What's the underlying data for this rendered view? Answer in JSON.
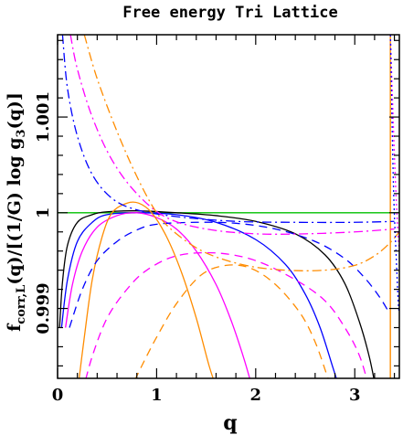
{
  "chart_data": {
    "type": "line",
    "title": "Free energy Tri Lattice",
    "xlabel": "q",
    "ylabel_main": "f",
    "ylabel_sub": "corr,L",
    "ylabel_mid": "(q)/[(1/G) log g",
    "ylabel_sub2": "3",
    "ylabel_tail": "(q)]",
    "xlim": [
      0,
      3.45
    ],
    "ylim": [
      0.99827,
      1.00186
    ],
    "x_ticks": [
      {
        "v": 0,
        "label": "0"
      },
      {
        "v": 1,
        "label": "1"
      },
      {
        "v": 2,
        "label": "2"
      },
      {
        "v": 3,
        "label": "3"
      }
    ],
    "y_ticks": [
      {
        "v": 0.999,
        "label": "0.999"
      },
      {
        "v": 1.0,
        "label": "1"
      },
      {
        "v": 1.001,
        "label": "1.001"
      }
    ],
    "reference_lines": [
      {
        "orientation": "horizontal",
        "value": 1.0,
        "color": "#00c000"
      },
      {
        "orientation": "vertical",
        "value": 3.3593,
        "color": "#ff8c00"
      }
    ],
    "series": [
      {
        "color": "#000000",
        "style": "solid",
        "points": [
          [
            0.02,
            0.9988
          ],
          [
            0.05,
            0.99928
          ],
          [
            0.1,
            0.99966
          ],
          [
            0.2,
            0.9999
          ],
          [
            0.35,
            0.99998
          ],
          [
            0.5,
            1.00001
          ],
          [
            0.8,
            1.00002
          ],
          [
            1.2,
            1.0
          ],
          [
            1.6,
            0.99997
          ],
          [
            2.0,
            0.99991
          ],
          [
            2.4,
            0.99978
          ],
          [
            2.7,
            0.99956
          ],
          [
            2.9,
            0.99926
          ],
          [
            3.05,
            0.99885
          ],
          [
            3.15,
            0.99848
          ],
          [
            3.22,
            0.99812
          ]
        ]
      },
      {
        "color": "#0000ff",
        "style": "solid",
        "points": [
          [
            0.04,
            0.9988
          ],
          [
            0.1,
            0.9993
          ],
          [
            0.2,
            0.9997
          ],
          [
            0.35,
            0.9999
          ],
          [
            0.5,
            0.99998
          ],
          [
            0.8,
            1.0
          ],
          [
            1.2,
            0.99998
          ],
          [
            1.6,
            0.9999
          ],
          [
            2.0,
            0.99972
          ],
          [
            2.3,
            0.99946
          ],
          [
            2.5,
            0.99915
          ],
          [
            2.65,
            0.9988
          ],
          [
            2.78,
            0.99838
          ],
          [
            2.86,
            0.99812
          ]
        ]
      },
      {
        "color": "#ff00ff",
        "style": "solid",
        "points": [
          [
            0.08,
            0.9988
          ],
          [
            0.15,
            0.99925
          ],
          [
            0.25,
            0.9996
          ],
          [
            0.4,
            0.99985
          ],
          [
            0.6,
            0.99997
          ],
          [
            0.8,
            1.0
          ],
          [
            1.0,
            0.99995
          ],
          [
            1.2,
            0.99983
          ],
          [
            1.4,
            0.9996
          ],
          [
            1.6,
            0.99925
          ],
          [
            1.75,
            0.99888
          ],
          [
            1.88,
            0.99848
          ],
          [
            1.98,
            0.99812
          ]
        ]
      },
      {
        "color": "#ff8c00",
        "style": "solid",
        "points": [
          [
            0.2,
            0.99812
          ],
          [
            0.27,
            0.9987
          ],
          [
            0.35,
            0.9993
          ],
          [
            0.45,
            0.99975
          ],
          [
            0.55,
            1.0
          ],
          [
            0.7,
            1.0001
          ],
          [
            0.82,
            1.0001
          ],
          [
            0.95,
            1.0
          ],
          [
            1.1,
            0.99975
          ],
          [
            1.25,
            0.99938
          ],
          [
            1.4,
            0.9989
          ],
          [
            1.53,
            0.9984
          ],
          [
            1.62,
            0.99812
          ]
        ]
      },
      {
        "color": "#0000ff",
        "style": "dashed",
        "points": [
          [
            0.12,
            0.9988
          ],
          [
            0.25,
            0.9992
          ],
          [
            0.4,
            0.9995
          ],
          [
            0.6,
            0.9997
          ],
          [
            0.8,
            0.99982
          ],
          [
            1.0,
            0.99988
          ],
          [
            1.4,
            0.9999
          ],
          [
            1.8,
            0.99989
          ],
          [
            2.2,
            0.99983
          ],
          [
            2.6,
            0.9997
          ],
          [
            2.9,
            0.99952
          ],
          [
            3.1,
            0.99932
          ],
          [
            3.25,
            0.99912
          ],
          [
            3.35,
            0.99895
          ]
        ]
      },
      {
        "color": "#ff00ff",
        "style": "dashed",
        "points": [
          [
            0.25,
            0.99812
          ],
          [
            0.35,
            0.9985
          ],
          [
            0.5,
            0.9989
          ],
          [
            0.7,
            0.9992
          ],
          [
            0.9,
            0.9994
          ],
          [
            1.2,
            0.99955
          ],
          [
            1.6,
            0.99958
          ],
          [
            2.0,
            0.9995
          ],
          [
            2.4,
            0.9993
          ],
          [
            2.7,
            0.99908
          ],
          [
            2.9,
            0.9988
          ],
          [
            3.05,
            0.9985
          ],
          [
            3.15,
            0.99815
          ]
        ]
      },
      {
        "color": "#ff8c00",
        "style": "dashed",
        "points": [
          [
            0.72,
            0.99812
          ],
          [
            0.85,
            0.9984
          ],
          [
            1.0,
            0.9987
          ],
          [
            1.2,
            0.99905
          ],
          [
            1.45,
            0.99935
          ],
          [
            1.7,
            0.99945
          ],
          [
            1.95,
            0.99942
          ],
          [
            2.2,
            0.99925
          ],
          [
            2.45,
            0.99895
          ],
          [
            2.6,
            0.99865
          ],
          [
            2.72,
            0.9983
          ],
          [
            2.78,
            0.99812
          ]
        ]
      },
      {
        "color": "#0000ff",
        "style": "dashdot",
        "points": [
          [
            0.05,
            1.00186
          ],
          [
            0.1,
            1.0013
          ],
          [
            0.2,
            1.0008
          ],
          [
            0.35,
            1.0004
          ],
          [
            0.55,
            1.00015
          ],
          [
            0.8,
            1.00003
          ],
          [
            1.2,
            0.99996
          ],
          [
            1.8,
            0.99991
          ],
          [
            2.4,
            0.9999
          ],
          [
            3.0,
            0.9999
          ],
          [
            3.4,
            0.99991
          ]
        ]
      },
      {
        "color": "#ff00ff",
        "style": "dashdot",
        "points": [
          [
            0.13,
            1.00186
          ],
          [
            0.2,
            1.0015
          ],
          [
            0.35,
            1.001
          ],
          [
            0.55,
            1.00055
          ],
          [
            0.8,
            1.0002
          ],
          [
            1.1,
            0.99995
          ],
          [
            1.5,
            0.99983
          ],
          [
            2.0,
            0.99978
          ],
          [
            2.5,
            0.99978
          ],
          [
            3.0,
            0.9998
          ],
          [
            3.4,
            0.99983
          ]
        ]
      },
      {
        "color": "#ff8c00",
        "style": "dashdot",
        "points": [
          [
            0.27,
            1.00186
          ],
          [
            0.4,
            1.0014
          ],
          [
            0.6,
            1.00085
          ],
          [
            0.8,
            1.00038
          ],
          [
            1.0,
            1.0
          ],
          [
            1.2,
            0.99978
          ],
          [
            1.5,
            0.99958
          ],
          [
            1.9,
            0.99945
          ],
          [
            2.3,
            0.9994
          ],
          [
            2.7,
            0.9994
          ],
          [
            3.0,
            0.99945
          ],
          [
            3.2,
            0.99955
          ],
          [
            3.35,
            0.99968
          ],
          [
            3.45,
            0.9998
          ]
        ]
      },
      {
        "color": "#ff00ff",
        "style": "dotted",
        "points": [
          [
            3.36,
            1.00186
          ],
          [
            3.4,
            1.0006
          ],
          [
            3.43,
            0.9999
          ],
          [
            3.45,
            0.9996
          ]
        ]
      },
      {
        "color": "#0000ff",
        "style": "dotted",
        "points": [
          [
            3.36,
            1.00186
          ],
          [
            3.39,
            1.0003
          ],
          [
            3.42,
            0.9995
          ],
          [
            3.44,
            0.99905
          ],
          [
            3.45,
            0.99895
          ]
        ]
      }
    ]
  }
}
